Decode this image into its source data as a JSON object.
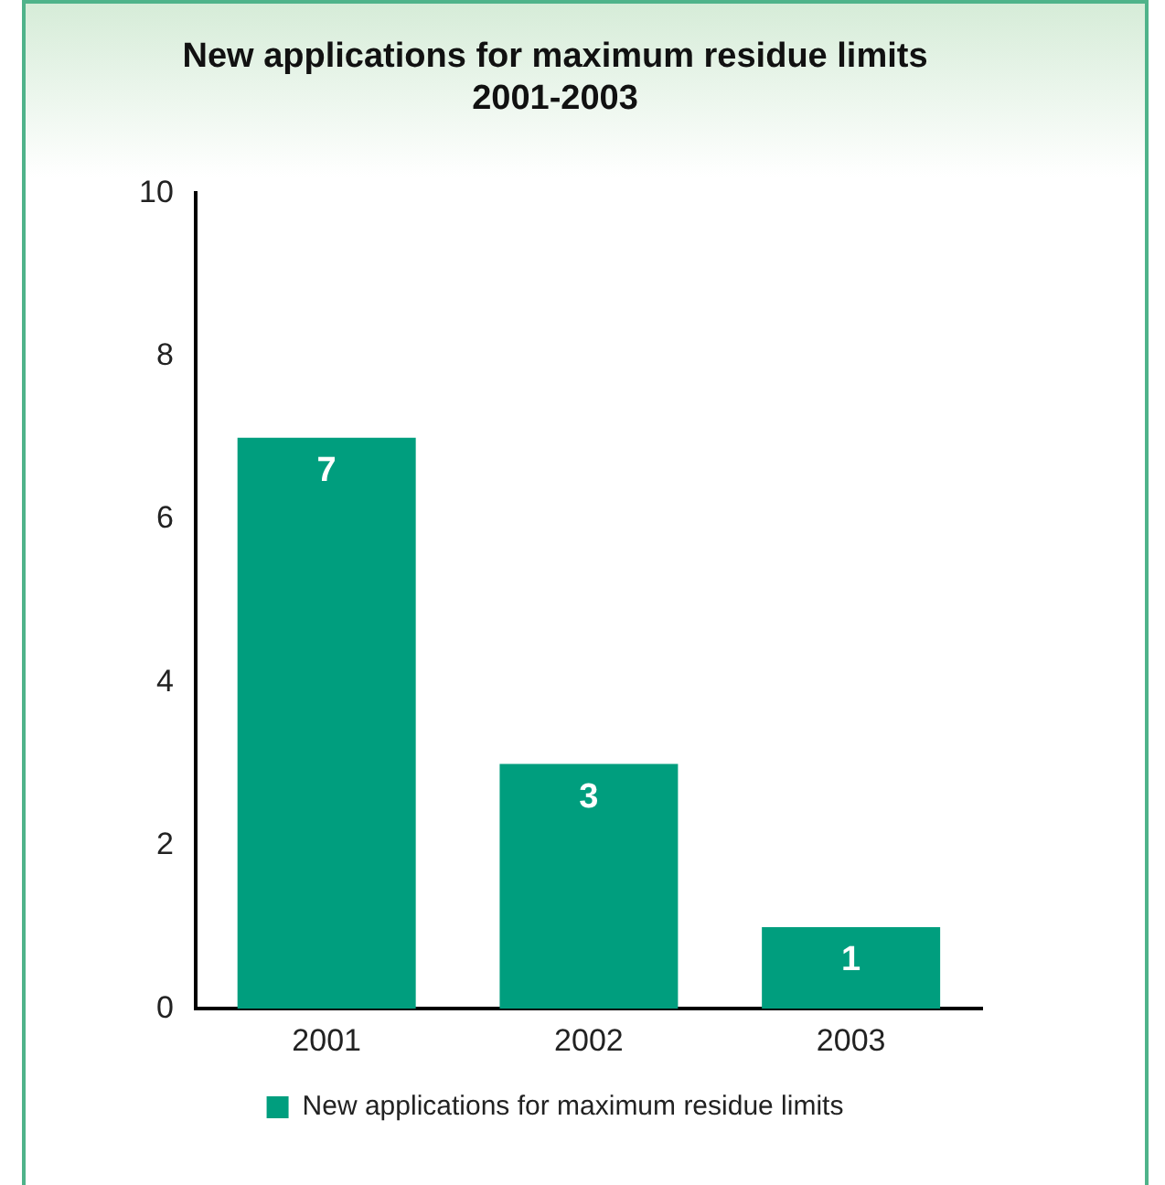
{
  "chart_data": {
    "type": "bar",
    "title": [
      "New applications for maximum residue limits",
      "2001-2003"
    ],
    "categories": [
      "2001",
      "2002",
      "2003"
    ],
    "series": [
      {
        "name": "New applications for maximum residue limits",
        "color": "#009e7e",
        "values": [
          7,
          3,
          1
        ]
      }
    ],
    "ylim": [
      0,
      10
    ],
    "yticks": [
      0,
      2,
      4,
      6,
      8,
      10
    ],
    "grid": false,
    "legend": "bottom",
    "data_labels": true
  }
}
